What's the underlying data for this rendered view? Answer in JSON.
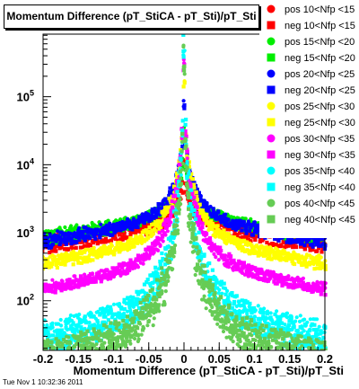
{
  "chart_data": {
    "type": "scatter",
    "title": "Momentum Difference (pT_StiCA - pT_Sti)/pT_Sti",
    "xlabel": "Momentum Difference (pT_StiCA - pT_Sti)/pT_Sti",
    "ylabel": "",
    "xlim": [
      -0.2,
      0.2
    ],
    "yscale": "log",
    "ylim_exp": [
      1.27,
      5.92
    ],
    "x_ticks": [
      "-0.2",
      "-0.15",
      "-0.1",
      "-0.05",
      "0",
      "0.05",
      "0.1",
      "0.15",
      "0.2"
    ],
    "y_ticks": [
      {
        "base": "10",
        "exp": "2",
        "value": 100
      },
      {
        "base": "10",
        "exp": "3",
        "value": 1000
      },
      {
        "base": "10",
        "exp": "4",
        "value": 10000
      },
      {
        "base": "10",
        "exp": "5",
        "value": 100000
      }
    ],
    "legend_position": "right",
    "series": [
      {
        "name": "pos 10<Nfp <15",
        "color": "#ff0000",
        "marker": "circle",
        "edge": 1100,
        "peak": 10000
      },
      {
        "name": "neg 10<Nfp <15",
        "color": "#ff0000",
        "marker": "square",
        "edge": 800,
        "peak": 9500
      },
      {
        "name": "pos 15<Nfp <20",
        "color": "#00ee00",
        "marker": "circle",
        "edge": 1250,
        "peak": 30000
      },
      {
        "name": "neg 15<Nfp <20",
        "color": "#00ee00",
        "marker": "square",
        "edge": 1050,
        "peak": 25000
      },
      {
        "name": "pos 20<Nfp <25",
        "color": "#0000ff",
        "marker": "circle",
        "edge": 1100,
        "peak": 80000
      },
      {
        "name": "neg 20<Nfp <25",
        "color": "#0000ff",
        "marker": "square",
        "edge": 900,
        "peak": 70000
      },
      {
        "name": "pos 25<Nfp <30",
        "color": "#ffff00",
        "marker": "circle",
        "edge": 500,
        "peak": 180000
      },
      {
        "name": "neg 25<Nfp <30",
        "color": "#ffff00",
        "marker": "square",
        "edge": 420,
        "peak": 160000
      },
      {
        "name": "pos 30<Nfp <35",
        "color": "#ff00ff",
        "marker": "circle",
        "edge": 210,
        "peak": 300000
      },
      {
        "name": "neg 30<Nfp <35",
        "color": "#ff00ff",
        "marker": "square",
        "edge": 180,
        "peak": 260000
      },
      {
        "name": "pos 35<Nfp <40",
        "color": "#00ffff",
        "marker": "circle",
        "edge": 40,
        "peak": 550000
      },
      {
        "name": "neg 35<Nfp <40",
        "color": "#00ffff",
        "marker": "square",
        "edge": 30,
        "peak": 500000
      },
      {
        "name": "pos 40<Nfp <45",
        "color": "#66cc55",
        "marker": "circle",
        "edge": 20,
        "peak": 350000
      },
      {
        "name": "neg 40<Nfp <45",
        "color": "#66cc55",
        "marker": "square",
        "edge": 18,
        "peak": 300000
      }
    ]
  },
  "footer": "Tue Nov  1 10:32:36 2011"
}
